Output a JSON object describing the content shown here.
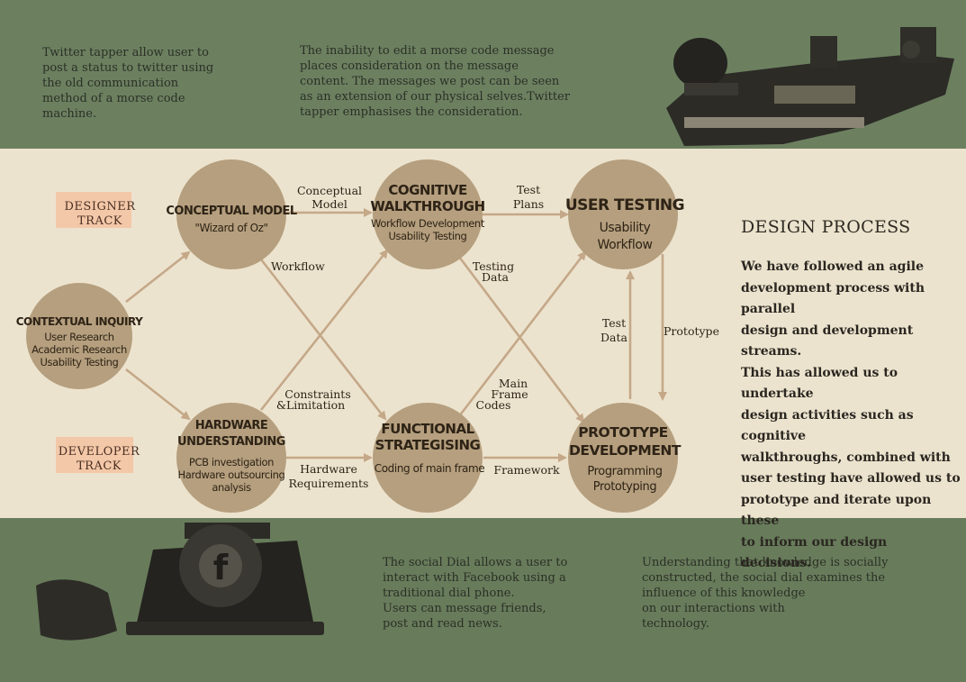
{
  "top_left_text": "Twitter tapper allow user to\npost a status to twitter using\nthe old communication\nmethod of a morse code\nmachine.",
  "top_middle_text": "The inability to edit a morse code message\nplaces consideration on the message\ncontent. The messages we post can be seen\nas an extension of our physical selves.Twitter\ntapper emphasises the consideration.",
  "bottom_middle_text": "The social Dial allows a user to\ninteract with Facebook using a\ntraditional dial phone.\nUsers can message friends,\npost and read news.",
  "bottom_right_text": "Understanding that knowledge is socially\nconstructed, the social dial examines the\ninfluence of this knowledge\non our interactions with\ntechnology.",
  "design_process": {
    "title": "DESIGN PROCESS",
    "body": "We have followed an agile\ndevelopment process with parallel\ndesign and development streams.\nThis has allowed us to undertake\ndesign activities such as cognitive\nwalkthroughs, combined with\nuser testing have allowed us to\nprototype and iterate upon these\nto inform our design decisions."
  },
  "tracks": {
    "designer": [
      "DESIGNER",
      "TRACK"
    ],
    "developer": [
      "DEVELOPER",
      "TRACK"
    ]
  },
  "nodes": {
    "contextual": {
      "title": [
        "CONTEXTUAL INQUIRY"
      ],
      "sub": [
        "User Research",
        "Academic Research",
        "Usability Testing"
      ]
    },
    "conceptual": {
      "title": [
        "CONCEPTUAL MODEL"
      ],
      "sub": [
        "\"Wizard of Oz\""
      ]
    },
    "hardware": {
      "title": [
        "HARDWARE",
        "UNDERSTANDING"
      ],
      "sub": [
        "PCB investigation",
        "Hardware outsourcing",
        "analysis"
      ]
    },
    "cognitive": {
      "title": [
        "COGNITIVE",
        "WALKTHROUGH"
      ],
      "sub": [
        "Workflow Development",
        "Usability Testing"
      ]
    },
    "functional": {
      "title": [
        "FUNCTIONAL",
        "STRATEGISING"
      ],
      "sub": [
        "Coding of main frame"
      ]
    },
    "usertesting": {
      "title": [
        "USER TESTING"
      ],
      "sub": [
        "Usability",
        "Workflow"
      ]
    },
    "prototype": {
      "title": [
        "PROTOTYPE",
        "DEVELOPMENT"
      ],
      "sub": [
        "Programming",
        "Prototyping"
      ]
    }
  },
  "edges": {
    "conceptual_model": [
      "Conceptual",
      "Model"
    ],
    "workflow": [
      "Workflow"
    ],
    "constraints": [
      "Constraints",
      "&Limitation"
    ],
    "hardware_req": [
      "Hardware",
      "Requirements"
    ],
    "test_plans": [
      "Test",
      "Plans"
    ],
    "testing_data": [
      "Testing",
      "Data"
    ],
    "main_frame": [
      "Main",
      "Frame",
      "Codes"
    ],
    "framework": [
      "Framework"
    ],
    "test_data": [
      "Test",
      "Data"
    ],
    "prototype": [
      "Prototype"
    ]
  },
  "colors": {
    "node": "#b59f7e",
    "arrow": "#c4a888",
    "band": "#6c8060",
    "paper": "#ece3ce"
  },
  "icons": {
    "top_right": "telegraph-key-icon",
    "bottom_left": "rotary-phone-icon",
    "phone_center": "facebook-icon"
  }
}
